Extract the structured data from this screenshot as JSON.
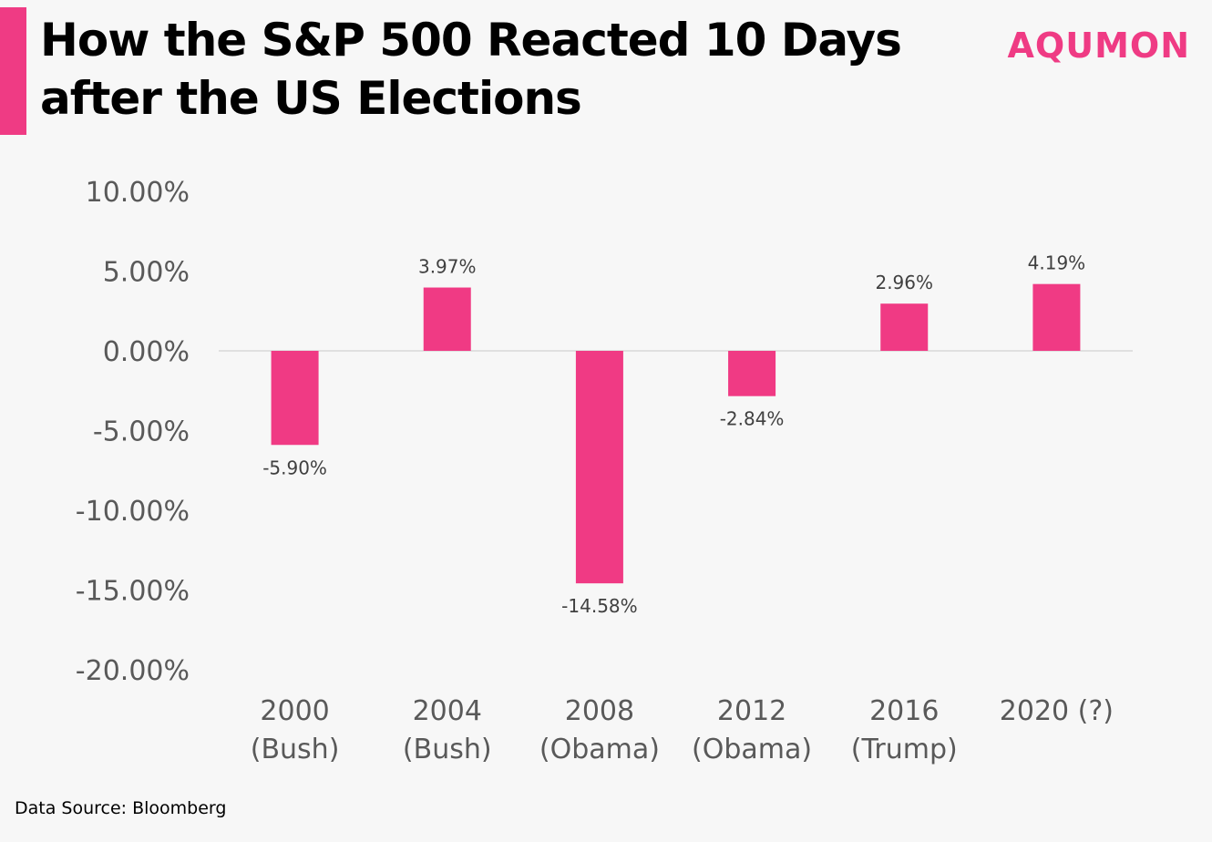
{
  "brand": {
    "name": "AQUMON",
    "color": "#ef3b84"
  },
  "source_note": "Data Source: Bloomberg",
  "colors": {
    "bar": "#f03a84",
    "axis_text": "#595959",
    "label_text": "#404040",
    "zero_line": "#d9d9d9"
  },
  "chart_data": {
    "type": "bar",
    "title": "How the S&P 500 Reacted 10 Days after the US Elections",
    "xlabel": "",
    "ylabel": "",
    "categories": [
      [
        "2000",
        "(Bush)"
      ],
      [
        "2004",
        "(Bush)"
      ],
      [
        "2008",
        "(Obama)"
      ],
      [
        "2012",
        "(Obama)"
      ],
      [
        "2016",
        "(Trump)"
      ],
      [
        "2020 (?)"
      ]
    ],
    "values": [
      -5.9,
      3.97,
      -14.58,
      -2.84,
      2.96,
      4.19
    ],
    "data_labels": [
      "-5.90%",
      "3.97%",
      "-14.58%",
      "-2.84%",
      "2.96%",
      "4.19%"
    ],
    "ylim": [
      -20,
      10
    ],
    "yticks": [
      10,
      5,
      0,
      -5,
      -10,
      -15,
      -20
    ],
    "ytick_labels": [
      "10.00%",
      "5.00%",
      "0.00%",
      "-5.00%",
      "-10.00%",
      "-15.00%",
      "-20.00%"
    ],
    "grid": false,
    "legend": "none"
  }
}
